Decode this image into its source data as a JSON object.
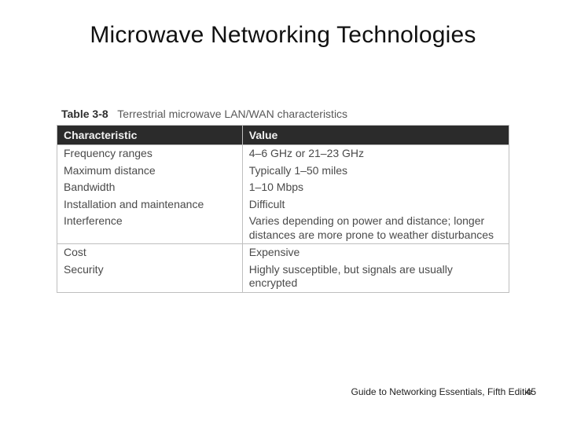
{
  "slide": {
    "title": "Microwave Networking Technologies"
  },
  "table": {
    "caption_number": "Table 3-8",
    "caption_text": "Terrestrial microwave LAN/WAN characteristics",
    "type": "table",
    "columns": [
      "Characteristic",
      "Value"
    ],
    "col_widths_pct": [
      41,
      59
    ],
    "header_bg": "#2b2b2b",
    "header_fg": "#f2f2f2",
    "border_color": "#bfbfbf",
    "body_text_color": "#4a4a4a",
    "font_size_pt": 10.5,
    "sections": [
      {
        "rows": [
          [
            "Frequency ranges",
            "4–6 GHz or 21–23 GHz"
          ],
          [
            "Maximum distance",
            "Typically 1–50 miles"
          ],
          [
            "Bandwidth",
            "1–10 Mbps"
          ],
          [
            "Installation and maintenance",
            "Difficult"
          ],
          [
            "Interference",
            "Varies depending on power and distance; longer distances are more prone to weather disturbances"
          ]
        ]
      },
      {
        "rows": [
          [
            "Cost",
            "Expensive"
          ],
          [
            "Security",
            "Highly susceptible, but signals are usually encrypted"
          ]
        ]
      }
    ]
  },
  "footer": {
    "text": "Guide to Networking Essentials, Fifth Editio",
    "page": "45"
  }
}
